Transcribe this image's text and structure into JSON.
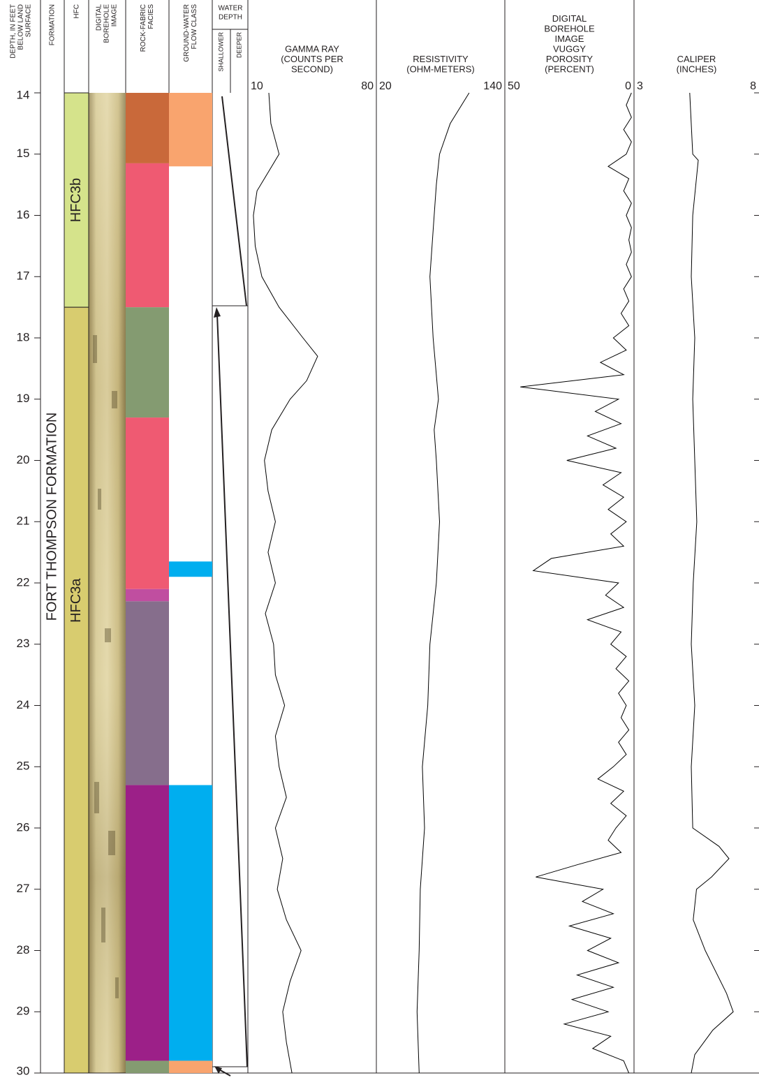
{
  "chart_data": {
    "type": "well_log",
    "ylabel": [
      "DEPTH, IN FEET",
      "BELOW LAND",
      "SURFACE"
    ],
    "ylim": [
      14,
      30
    ],
    "yticks": [
      14,
      15,
      16,
      17,
      18,
      19,
      20,
      21,
      22,
      23,
      24,
      25,
      26,
      27,
      28,
      29,
      30
    ],
    "headers": {
      "formation": [
        "FORMATION"
      ],
      "hfc": [
        "HFC"
      ],
      "image": [
        "DIGITAL",
        "BOREHOLE",
        "IMAGE"
      ],
      "facies": [
        "ROCK-FABRIC",
        "FACIES"
      ],
      "flow_class": [
        "GROUND-WATER",
        "FLOW CLASS"
      ],
      "water_depth": [
        "WATER",
        "DEPTH"
      ],
      "shallower": "SHALLOWER",
      "deeper": "DEEPER"
    },
    "formation": {
      "label": "FORT THOMPSON FORMATION",
      "top": 14,
      "bottom": 30
    },
    "hfc": [
      {
        "label": "HFC3b",
        "top": 14,
        "bottom": 17.5,
        "color": "#d5e38b"
      },
      {
        "label": "HFC3a",
        "top": 17.5,
        "bottom": 30,
        "color": "#d8cc6f"
      }
    ],
    "facies": [
      {
        "top": 14,
        "bottom": 15.15,
        "color": "#c9693a"
      },
      {
        "top": 15.15,
        "bottom": 17.5,
        "color": "#ef5a72"
      },
      {
        "top": 17.5,
        "bottom": 19.3,
        "color": "#849b71"
      },
      {
        "top": 19.3,
        "bottom": 22.1,
        "color": "#ef5a72"
      },
      {
        "top": 22.1,
        "bottom": 22.3,
        "color": "#c04ea0"
      },
      {
        "top": 22.3,
        "bottom": 25.3,
        "color": "#866e8c"
      },
      {
        "top": 25.3,
        "bottom": 29.8,
        "color": "#9c2088"
      },
      {
        "top": 29.8,
        "bottom": 30,
        "color": "#849b71"
      }
    ],
    "flow_class": [
      {
        "top": 14,
        "bottom": 15.2,
        "color": "#f9a46e"
      },
      {
        "top": 21.65,
        "bottom": 21.9,
        "color": "#00aeef"
      },
      {
        "top": 25.3,
        "bottom": 29.8,
        "color": "#00aeef"
      },
      {
        "top": 29.8,
        "bottom": 30,
        "color": "#f9a46e"
      }
    ],
    "tracks": [
      {
        "type": "line",
        "title": [
          "GAMMA RAY",
          "(COUNTS PER",
          "SECOND)"
        ],
        "xlim": [
          10,
          80
        ],
        "xticks": [
          10,
          80
        ],
        "color": "#000000",
        "depth": [
          14,
          14.5,
          15,
          15.3,
          15.6,
          16,
          16.5,
          17,
          17.5,
          18,
          18.3,
          18.7,
          19,
          19.5,
          20,
          20.5,
          21,
          21.5,
          22,
          22.5,
          23,
          23.5,
          24,
          24.5,
          25,
          25.5,
          26,
          26.5,
          27,
          27.5,
          28,
          28.5,
          29,
          29.5,
          30
        ],
        "values": [
          21.4,
          22.5,
          27,
          21,
          15,
          13,
          14,
          17.6,
          27,
          40,
          48,
          42,
          33,
          23,
          19,
          21,
          25,
          21,
          25,
          19.5,
          24,
          25,
          30,
          25,
          27,
          31,
          25,
          29,
          26,
          31,
          39,
          33,
          29,
          31,
          34
        ]
      },
      {
        "type": "line",
        "title": [
          "RESISTIVITY",
          "(OHM-METERS)"
        ],
        "xlim": [
          20,
          140
        ],
        "xticks": [
          20,
          140
        ],
        "color": "#000000",
        "depth": [
          14,
          14.5,
          15,
          15.5,
          16,
          17,
          18,
          19,
          19.5,
          20,
          21,
          22,
          23,
          24,
          25,
          26,
          27,
          28,
          29,
          30
        ],
        "values": [
          106.7,
          89,
          79,
          76,
          74,
          70,
          73,
          78,
          74,
          76,
          79,
          76,
          70,
          68,
          63,
          65,
          61,
          60,
          58,
          60
        ]
      },
      {
        "type": "line",
        "title": [
          "DIGITAL",
          "BOREHOLE",
          "IMAGE",
          "VUGGY",
          "POROSITY",
          "(PERCENT)"
        ],
        "xlim": [
          50,
          0
        ],
        "xticks": [
          50,
          0
        ],
        "color": "#000000",
        "depth": [
          14,
          14.2,
          14.4,
          14.6,
          14.8,
          15,
          15.2,
          15.4,
          15.6,
          15.8,
          16,
          16.2,
          16.4,
          16.6,
          16.8,
          17,
          17.2,
          17.4,
          17.6,
          17.8,
          18,
          18.2,
          18.4,
          18.6,
          18.8,
          19,
          19.2,
          19.4,
          19.6,
          19.8,
          20,
          20.2,
          20.4,
          20.6,
          20.8,
          21,
          21.2,
          21.4,
          21.6,
          21.8,
          22,
          22.2,
          22.4,
          22.6,
          22.8,
          23,
          23.2,
          23.4,
          23.6,
          23.8,
          24,
          24.2,
          24.4,
          24.6,
          24.8,
          25,
          25.2,
          25.4,
          25.6,
          25.8,
          26,
          26.2,
          26.4,
          26.6,
          26.8,
          27,
          27.2,
          27.4,
          27.6,
          27.8,
          28,
          28.2,
          28.4,
          28.6,
          28.8,
          29,
          29.2,
          29.4,
          29.6,
          29.8,
          30
        ],
        "values": [
          1,
          3,
          1,
          4,
          1,
          3,
          10,
          2,
          4,
          1,
          3,
          1,
          2,
          1,
          3,
          1,
          4,
          2,
          5,
          2,
          8,
          3,
          13,
          4,
          44,
          6,
          15,
          5,
          18,
          7,
          26,
          5,
          12,
          4,
          10,
          3,
          9,
          4,
          32,
          39,
          6,
          11,
          4,
          18,
          5,
          9,
          3,
          7,
          2,
          6,
          3,
          5,
          2,
          6,
          3,
          8,
          14,
          4,
          9,
          3,
          7,
          10,
          5,
          22,
          38,
          12,
          20,
          8,
          25,
          9,
          18,
          6,
          22,
          8,
          24,
          10,
          27,
          9,
          16,
          4,
          2
        ]
      },
      {
        "type": "line",
        "title": [
          "CALIPER",
          "(INCHES)"
        ],
        "xlim": [
          3,
          8
        ],
        "xticks": [
          3,
          8
        ],
        "color": "#000000",
        "depth": [
          14,
          15,
          15.1,
          16,
          17,
          18,
          19,
          20,
          21,
          22,
          23,
          24,
          25,
          26,
          26.3,
          26.5,
          26.8,
          27,
          27.5,
          28,
          28.7,
          29,
          29.3,
          29.7,
          30
        ],
        "values": [
          5.23,
          5.35,
          5.57,
          5.35,
          5.29,
          5.43,
          5.35,
          5.43,
          5.51,
          5.37,
          5.29,
          5.43,
          5.29,
          5.35,
          6.4,
          6.8,
          6.1,
          5.5,
          5.37,
          5.85,
          6.7,
          6.97,
          6.15,
          5.43,
          5.29
        ]
      }
    ]
  }
}
